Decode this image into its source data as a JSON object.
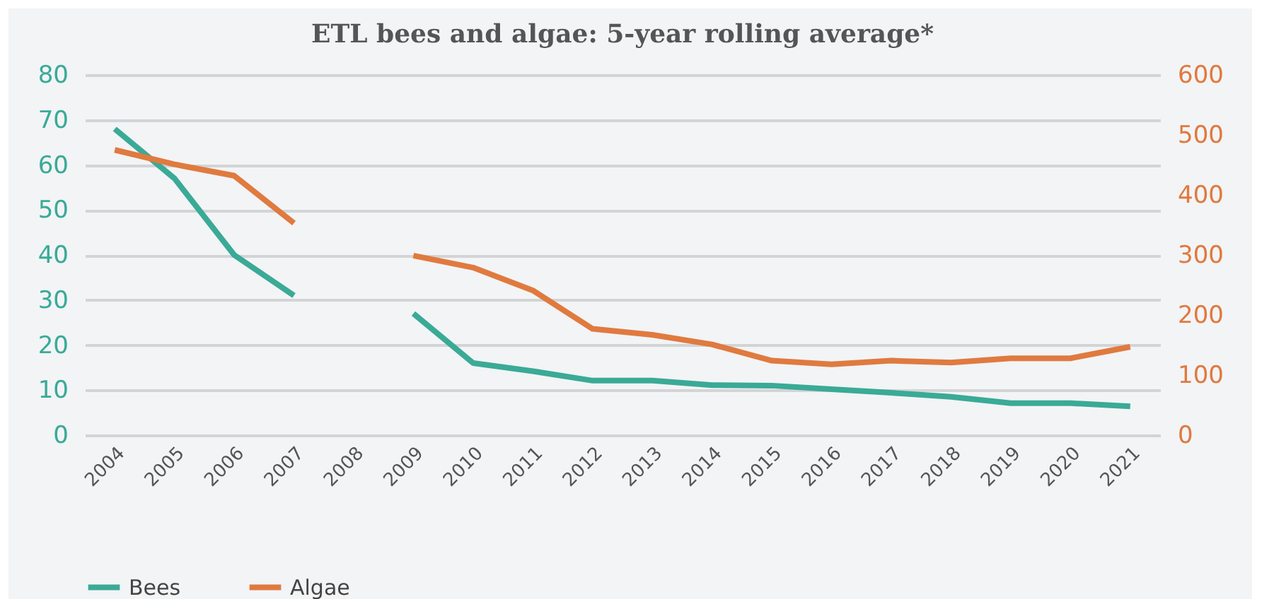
{
  "chart_data": {
    "type": "line",
    "title": "ETL bees and algae: 5-year rolling average*",
    "categories": [
      "2004",
      "2005",
      "2006",
      "2007",
      "2008",
      "2009",
      "2010",
      "2011",
      "2012",
      "2013",
      "2014",
      "2015",
      "2016",
      "2017",
      "2018",
      "2019",
      "2020",
      "2021"
    ],
    "series": [
      {
        "name": "Bees",
        "color": "#3aaa96",
        "values": [
          68,
          57,
          40,
          31,
          null,
          27,
          16,
          14.2,
          12.1,
          12.1,
          11.1,
          11,
          10.2,
          9.4,
          8.5,
          7.1,
          7.1,
          6.4
        ]
      },
      {
        "name": "Algae",
        "color": "#e07a3f",
        "axis": "y2",
        "values": [
          475,
          451,
          432,
          353,
          null,
          299,
          279,
          241,
          177,
          167,
          151,
          124,
          118,
          124,
          121,
          128,
          128,
          147
        ]
      }
    ],
    "ylim": [
      0,
      80
    ],
    "yticks": [
      0,
      10,
      20,
      30,
      40,
      50,
      60,
      70,
      80
    ],
    "y2lim": [
      0,
      600
    ],
    "y2ticks": [
      0,
      100,
      200,
      300,
      400,
      500,
      600
    ],
    "grid": "y",
    "legend": "bottom",
    "line_style": "solid",
    "marker": "none"
  }
}
